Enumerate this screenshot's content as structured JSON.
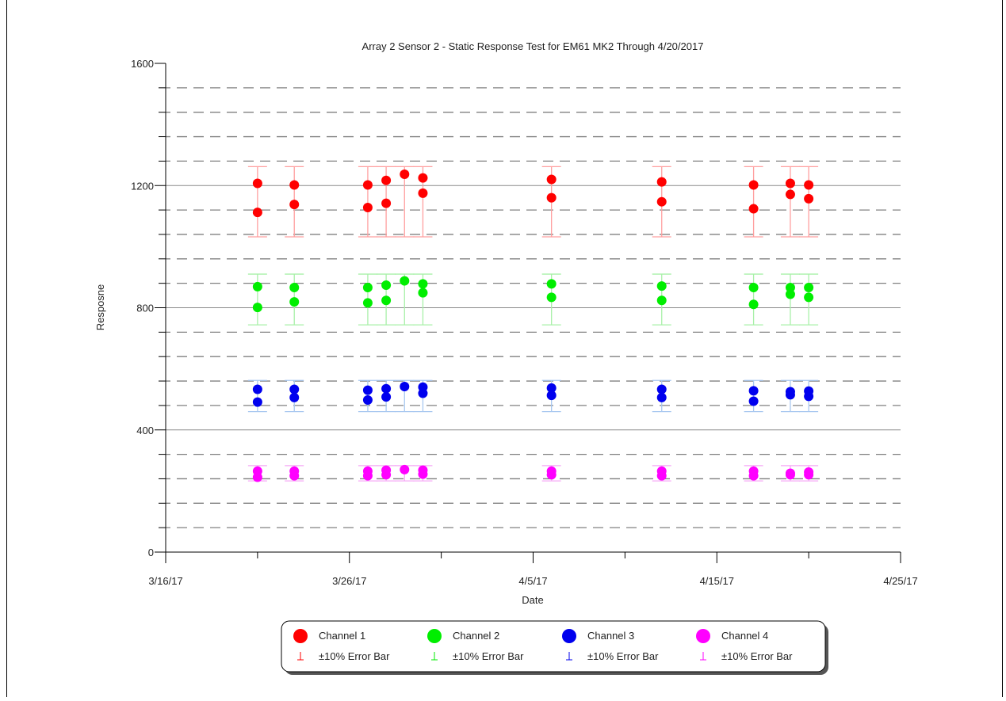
{
  "chart_data": {
    "type": "scatter",
    "title": "Array 2 Sensor 2 - Static Response Test for EM61 MK2 Through 4/20/2017",
    "xlabel": "Date",
    "ylabel": "Resposne",
    "x_ticks": [
      "3/16/17",
      "3/26/17",
      "4/5/17",
      "4/15/17",
      "4/25/17"
    ],
    "y_ticks": [
      0,
      400,
      800,
      1200,
      1600
    ],
    "xlim": [
      "2017-03-16",
      "2017-04-25"
    ],
    "ylim": [
      0,
      1600
    ],
    "grid": true,
    "legend_position": "bottom",
    "series": [
      {
        "name": "Channel 1",
        "color": "#ff0000",
        "error_color": "#ff9f9f",
        "error_label": "±10% Error Bar",
        "error_bars": [
          {
            "x": "2017-03-21",
            "low": 1032,
            "high": 1262
          },
          {
            "x": "2017-03-23",
            "low": 1032,
            "high": 1262
          },
          {
            "x": "2017-03-27",
            "low": 1032,
            "high": 1262
          },
          {
            "x": "2017-03-28",
            "low": 1032,
            "high": 1262
          },
          {
            "x": "2017-03-29",
            "low": 1032,
            "high": 1262
          },
          {
            "x": "2017-03-30",
            "low": 1032,
            "high": 1262
          },
          {
            "x": "2017-04-06",
            "low": 1032,
            "high": 1262
          },
          {
            "x": "2017-04-12",
            "low": 1032,
            "high": 1262
          },
          {
            "x": "2017-04-17",
            "low": 1032,
            "high": 1262
          },
          {
            "x": "2017-04-19",
            "low": 1032,
            "high": 1262
          },
          {
            "x": "2017-04-20",
            "low": 1032,
            "high": 1262
          }
        ],
        "points": [
          {
            "x": "2017-03-21",
            "y": 1207
          },
          {
            "x": "2017-03-21",
            "y": 1112
          },
          {
            "x": "2017-03-23",
            "y": 1202
          },
          {
            "x": "2017-03-23",
            "y": 1138
          },
          {
            "x": "2017-03-27",
            "y": 1202
          },
          {
            "x": "2017-03-27",
            "y": 1128
          },
          {
            "x": "2017-03-28",
            "y": 1217
          },
          {
            "x": "2017-03-28",
            "y": 1142
          },
          {
            "x": "2017-03-29",
            "y": 1237
          },
          {
            "x": "2017-03-30",
            "y": 1225
          },
          {
            "x": "2017-03-30",
            "y": 1175
          },
          {
            "x": "2017-04-06",
            "y": 1220
          },
          {
            "x": "2017-04-06",
            "y": 1160
          },
          {
            "x": "2017-04-12",
            "y": 1212
          },
          {
            "x": "2017-04-12",
            "y": 1147
          },
          {
            "x": "2017-04-17",
            "y": 1202
          },
          {
            "x": "2017-04-17",
            "y": 1124
          },
          {
            "x": "2017-04-19",
            "y": 1207
          },
          {
            "x": "2017-04-19",
            "y": 1171
          },
          {
            "x": "2017-04-20",
            "y": 1202
          },
          {
            "x": "2017-04-20",
            "y": 1157
          }
        ]
      },
      {
        "name": "Channel 2",
        "color": "#00ee00",
        "error_color": "#a8f0a8",
        "error_label": "±10% Error Bar",
        "error_bars": [
          {
            "x": "2017-03-21",
            "low": 744,
            "high": 910
          },
          {
            "x": "2017-03-23",
            "low": 744,
            "high": 910
          },
          {
            "x": "2017-03-27",
            "low": 744,
            "high": 910
          },
          {
            "x": "2017-03-28",
            "low": 744,
            "high": 910
          },
          {
            "x": "2017-03-29",
            "low": 744,
            "high": 910
          },
          {
            "x": "2017-03-30",
            "low": 744,
            "high": 910
          },
          {
            "x": "2017-04-06",
            "low": 744,
            "high": 910
          },
          {
            "x": "2017-04-12",
            "low": 744,
            "high": 910
          },
          {
            "x": "2017-04-17",
            "low": 744,
            "high": 910
          },
          {
            "x": "2017-04-19",
            "low": 744,
            "high": 910
          },
          {
            "x": "2017-04-20",
            "low": 744,
            "high": 910
          }
        ],
        "points": [
          {
            "x": "2017-03-21",
            "y": 869
          },
          {
            "x": "2017-03-21",
            "y": 801
          },
          {
            "x": "2017-03-23",
            "y": 866
          },
          {
            "x": "2017-03-23",
            "y": 819
          },
          {
            "x": "2017-03-27",
            "y": 866
          },
          {
            "x": "2017-03-27",
            "y": 816
          },
          {
            "x": "2017-03-28",
            "y": 874
          },
          {
            "x": "2017-03-28",
            "y": 824
          },
          {
            "x": "2017-03-29",
            "y": 888
          },
          {
            "x": "2017-03-30",
            "y": 878
          },
          {
            "x": "2017-03-30",
            "y": 849
          },
          {
            "x": "2017-04-06",
            "y": 878
          },
          {
            "x": "2017-04-06",
            "y": 834
          },
          {
            "x": "2017-04-12",
            "y": 871
          },
          {
            "x": "2017-04-12",
            "y": 824
          },
          {
            "x": "2017-04-17",
            "y": 866
          },
          {
            "x": "2017-04-17",
            "y": 811
          },
          {
            "x": "2017-04-19",
            "y": 866
          },
          {
            "x": "2017-04-19",
            "y": 844
          },
          {
            "x": "2017-04-20",
            "y": 866
          },
          {
            "x": "2017-04-20",
            "y": 834
          }
        ]
      },
      {
        "name": "Channel 3",
        "color": "#0000ee",
        "error_color": "#a8c8f0",
        "error_label": "±10% Error Bar",
        "error_bars": [
          {
            "x": "2017-03-21",
            "low": 460,
            "high": 562
          },
          {
            "x": "2017-03-23",
            "low": 460,
            "high": 562
          },
          {
            "x": "2017-03-27",
            "low": 460,
            "high": 562
          },
          {
            "x": "2017-03-28",
            "low": 460,
            "high": 562
          },
          {
            "x": "2017-03-29",
            "low": 460,
            "high": 562
          },
          {
            "x": "2017-03-30",
            "low": 460,
            "high": 562
          },
          {
            "x": "2017-04-06",
            "low": 460,
            "high": 562
          },
          {
            "x": "2017-04-12",
            "low": 460,
            "high": 562
          },
          {
            "x": "2017-04-17",
            "low": 460,
            "high": 562
          },
          {
            "x": "2017-04-19",
            "low": 460,
            "high": 562
          },
          {
            "x": "2017-04-20",
            "low": 460,
            "high": 562
          }
        ],
        "points": [
          {
            "x": "2017-03-21",
            "y": 533
          },
          {
            "x": "2017-03-21",
            "y": 491
          },
          {
            "x": "2017-03-23",
            "y": 533
          },
          {
            "x": "2017-03-23",
            "y": 506
          },
          {
            "x": "2017-03-27",
            "y": 530
          },
          {
            "x": "2017-03-27",
            "y": 498
          },
          {
            "x": "2017-03-28",
            "y": 535
          },
          {
            "x": "2017-03-28",
            "y": 508
          },
          {
            "x": "2017-03-29",
            "y": 542
          },
          {
            "x": "2017-03-30",
            "y": 540
          },
          {
            "x": "2017-03-30",
            "y": 520
          },
          {
            "x": "2017-04-06",
            "y": 537
          },
          {
            "x": "2017-04-06",
            "y": 513
          },
          {
            "x": "2017-04-12",
            "y": 533
          },
          {
            "x": "2017-04-12",
            "y": 506
          },
          {
            "x": "2017-04-17",
            "y": 528
          },
          {
            "x": "2017-04-17",
            "y": 494
          },
          {
            "x": "2017-04-19",
            "y": 525
          },
          {
            "x": "2017-04-19",
            "y": 515
          },
          {
            "x": "2017-04-20",
            "y": 527
          },
          {
            "x": "2017-04-20",
            "y": 510
          }
        ]
      },
      {
        "name": "Channel 4",
        "color": "#ff00ff",
        "error_color": "#f5a8f5",
        "error_label": "±10% Error Bar",
        "error_bars": [
          {
            "x": "2017-03-21",
            "low": 233,
            "high": 283
          },
          {
            "x": "2017-03-23",
            "low": 233,
            "high": 283
          },
          {
            "x": "2017-03-27",
            "low": 233,
            "high": 283
          },
          {
            "x": "2017-03-28",
            "low": 233,
            "high": 283
          },
          {
            "x": "2017-03-29",
            "low": 233,
            "high": 283
          },
          {
            "x": "2017-03-30",
            "low": 233,
            "high": 283
          },
          {
            "x": "2017-04-06",
            "low": 233,
            "high": 283
          },
          {
            "x": "2017-04-12",
            "low": 233,
            "high": 283
          },
          {
            "x": "2017-04-17",
            "low": 233,
            "high": 283
          },
          {
            "x": "2017-04-19",
            "low": 233,
            "high": 283
          },
          {
            "x": "2017-04-20",
            "low": 233,
            "high": 283
          }
        ],
        "points": [
          {
            "x": "2017-03-21",
            "y": 265
          },
          {
            "x": "2017-03-21",
            "y": 245
          },
          {
            "x": "2017-03-23",
            "y": 265
          },
          {
            "x": "2017-03-23",
            "y": 250
          },
          {
            "x": "2017-03-27",
            "y": 265
          },
          {
            "x": "2017-03-27",
            "y": 250
          },
          {
            "x": "2017-03-28",
            "y": 268
          },
          {
            "x": "2017-03-28",
            "y": 253
          },
          {
            "x": "2017-03-29",
            "y": 270
          },
          {
            "x": "2017-03-30",
            "y": 268
          },
          {
            "x": "2017-03-30",
            "y": 255
          },
          {
            "x": "2017-04-06",
            "y": 265
          },
          {
            "x": "2017-04-06",
            "y": 253
          },
          {
            "x": "2017-04-12",
            "y": 265
          },
          {
            "x": "2017-04-12",
            "y": 250
          },
          {
            "x": "2017-04-17",
            "y": 265
          },
          {
            "x": "2017-04-17",
            "y": 250
          },
          {
            "x": "2017-04-19",
            "y": 258
          },
          {
            "x": "2017-04-19",
            "y": 253
          },
          {
            "x": "2017-04-20",
            "y": 262
          },
          {
            "x": "2017-04-20",
            "y": 253
          }
        ]
      }
    ]
  }
}
